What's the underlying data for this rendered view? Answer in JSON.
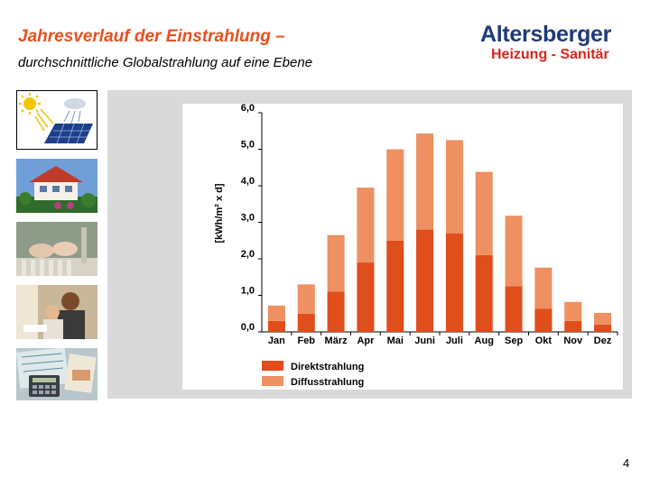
{
  "header": {
    "title": "Jahresverlauf der Einstrahlung –",
    "subtitle": "durchschnittliche Globalstrahlung auf eine Ebene"
  },
  "logo": {
    "top_text": "Altersberger",
    "bottom_text": "Heizung - Sanitär",
    "colors": {
      "top": "#1f3a78",
      "bottom": "#d7261e"
    }
  },
  "thumbnails": [
    {
      "icon": "solar-panel-icon"
    },
    {
      "icon": "house-photo-icon"
    },
    {
      "icon": "radiator-feet-photo-icon"
    },
    {
      "icon": "family-photo-icon"
    },
    {
      "icon": "calculator-documents-photo-icon"
    }
  ],
  "chart_data": {
    "type": "bar",
    "stacked": true,
    "categories": [
      "Jan",
      "Feb",
      "März",
      "Apr",
      "Mai",
      "Juni",
      "Juli",
      "Aug",
      "Sep",
      "Okt",
      "Nov",
      "Dez"
    ],
    "series": [
      {
        "name": "Direktstrahlung",
        "color": "#e04e1b",
        "values": [
          0.3,
          0.5,
          1.1,
          1.9,
          2.5,
          2.8,
          2.7,
          2.1,
          1.25,
          0.63,
          0.3,
          0.2
        ]
      },
      {
        "name": "Diffusstrahlung",
        "color": "#ee9061",
        "values": [
          0.42,
          0.8,
          1.55,
          2.05,
          2.5,
          2.63,
          2.55,
          2.28,
          1.93,
          1.13,
          0.52,
          0.32
        ]
      }
    ],
    "ylabel": "[kWh/m² x d]",
    "ylim": [
      0,
      6
    ],
    "yticks": [
      "0,0",
      "1,0",
      "2,0",
      "3,0",
      "4,0",
      "5,0",
      "6,0"
    ],
    "legend_position": "bottom-left",
    "grid": false
  },
  "page": {
    "number": "4"
  }
}
